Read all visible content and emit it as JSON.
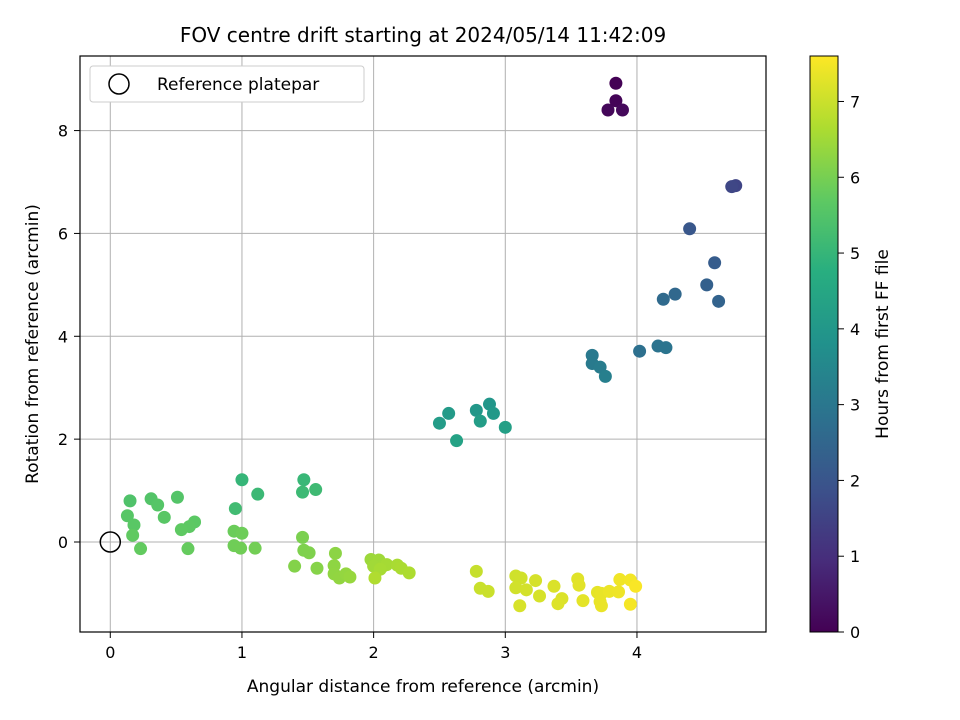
{
  "chart_data": {
    "type": "scatter",
    "title": "FOV centre drift starting at 2024/05/14 11:42:09",
    "xlabel": "Angular distance from reference (arcmin)",
    "ylabel": "Rotation from reference (arcmin)",
    "xlim": [
      -0.23,
      4.98
    ],
    "ylim": [
      -1.75,
      9.45
    ],
    "xticks": [
      0,
      1,
      2,
      3,
      4
    ],
    "yticks": [
      0,
      2,
      4,
      6,
      8
    ],
    "grid": true,
    "legend": {
      "location": "upper-left",
      "entries": [
        "Reference platepar"
      ]
    },
    "colormap": "viridis",
    "colorbar": {
      "label": "Hours from first FF file",
      "range": [
        0,
        7.6
      ],
      "ticks": [
        0,
        1,
        2,
        3,
        4,
        5,
        6,
        7
      ]
    },
    "reference_point": {
      "x": 0,
      "y": 0,
      "label": "Reference platepar"
    },
    "points": [
      {
        "x": 3.84,
        "y": 8.92,
        "h": 0.02
      },
      {
        "x": 3.84,
        "y": 8.58,
        "h": 0.07
      },
      {
        "x": 3.78,
        "y": 8.4,
        "h": 0.12
      },
      {
        "x": 3.89,
        "y": 8.4,
        "h": 0.17
      },
      {
        "x": 4.75,
        "y": 6.93,
        "h": 1.55
      },
      {
        "x": 4.72,
        "y": 6.91,
        "h": 1.62
      },
      {
        "x": 4.4,
        "y": 6.09,
        "h": 2.05
      },
      {
        "x": 4.59,
        "y": 5.43,
        "h": 2.2
      },
      {
        "x": 4.53,
        "y": 5.0,
        "h": 2.32
      },
      {
        "x": 4.62,
        "y": 4.68,
        "h": 2.4
      },
      {
        "x": 4.29,
        "y": 4.82,
        "h": 2.55
      },
      {
        "x": 4.2,
        "y": 4.72,
        "h": 2.62
      },
      {
        "x": 4.02,
        "y": 3.71,
        "h": 2.8
      },
      {
        "x": 4.16,
        "y": 3.81,
        "h": 2.88
      },
      {
        "x": 4.22,
        "y": 3.78,
        "h": 2.92
      },
      {
        "x": 3.66,
        "y": 3.63,
        "h": 3.05
      },
      {
        "x": 3.66,
        "y": 3.47,
        "h": 3.1
      },
      {
        "x": 3.72,
        "y": 3.4,
        "h": 3.15
      },
      {
        "x": 3.76,
        "y": 3.22,
        "h": 3.25
      },
      {
        "x": 2.88,
        "y": 2.68,
        "h": 3.95
      },
      {
        "x": 2.78,
        "y": 2.56,
        "h": 4.0
      },
      {
        "x": 2.91,
        "y": 2.5,
        "h": 4.05
      },
      {
        "x": 2.57,
        "y": 2.5,
        "h": 4.1
      },
      {
        "x": 2.5,
        "y": 2.31,
        "h": 4.15
      },
      {
        "x": 2.81,
        "y": 2.35,
        "h": 4.2
      },
      {
        "x": 3.0,
        "y": 2.23,
        "h": 4.25
      },
      {
        "x": 2.63,
        "y": 1.97,
        "h": 4.35
      },
      {
        "x": 1.0,
        "y": 1.21,
        "h": 5.0
      },
      {
        "x": 1.47,
        "y": 1.21,
        "h": 5.05
      },
      {
        "x": 1.12,
        "y": 0.93,
        "h": 5.1
      },
      {
        "x": 1.46,
        "y": 0.97,
        "h": 5.12
      },
      {
        "x": 1.56,
        "y": 1.02,
        "h": 5.15
      },
      {
        "x": 0.95,
        "y": 0.65,
        "h": 5.2
      },
      {
        "x": 0.15,
        "y": 0.8,
        "h": 5.45
      },
      {
        "x": 0.31,
        "y": 0.84,
        "h": 5.5
      },
      {
        "x": 0.51,
        "y": 0.87,
        "h": 5.52
      },
      {
        "x": 0.36,
        "y": 0.72,
        "h": 5.55
      },
      {
        "x": 0.13,
        "y": 0.51,
        "h": 5.58
      },
      {
        "x": 0.41,
        "y": 0.48,
        "h": 5.6
      },
      {
        "x": 0.18,
        "y": 0.33,
        "h": 5.62
      },
      {
        "x": 0.64,
        "y": 0.39,
        "h": 5.65
      },
      {
        "x": 0.6,
        "y": 0.3,
        "h": 5.68
      },
      {
        "x": 0.54,
        "y": 0.24,
        "h": 5.7
      },
      {
        "x": 0.17,
        "y": 0.13,
        "h": 5.72
      },
      {
        "x": 0.23,
        "y": -0.13,
        "h": 5.75
      },
      {
        "x": 0.59,
        "y": -0.13,
        "h": 5.78
      },
      {
        "x": 0.94,
        "y": 0.21,
        "h": 5.85
      },
      {
        "x": 1.0,
        "y": 0.17,
        "h": 5.88
      },
      {
        "x": 0.94,
        "y": -0.07,
        "h": 5.9
      },
      {
        "x": 0.99,
        "y": -0.12,
        "h": 5.92
      },
      {
        "x": 1.1,
        "y": -0.12,
        "h": 5.95
      },
      {
        "x": 1.46,
        "y": 0.09,
        "h": 6.05
      },
      {
        "x": 1.47,
        "y": -0.16,
        "h": 6.08
      },
      {
        "x": 1.51,
        "y": -0.21,
        "h": 6.1
      },
      {
        "x": 1.4,
        "y": -0.47,
        "h": 6.15
      },
      {
        "x": 1.57,
        "y": -0.51,
        "h": 6.18
      },
      {
        "x": 1.71,
        "y": -0.22,
        "h": 6.25
      },
      {
        "x": 1.7,
        "y": -0.46,
        "h": 6.28
      },
      {
        "x": 1.7,
        "y": -0.62,
        "h": 6.3
      },
      {
        "x": 1.74,
        "y": -0.7,
        "h": 6.32
      },
      {
        "x": 1.79,
        "y": -0.62,
        "h": 6.35
      },
      {
        "x": 1.82,
        "y": -0.68,
        "h": 6.38
      },
      {
        "x": 1.98,
        "y": -0.34,
        "h": 6.45
      },
      {
        "x": 2.04,
        "y": -0.35,
        "h": 6.48
      },
      {
        "x": 2.0,
        "y": -0.47,
        "h": 6.5
      },
      {
        "x": 2.07,
        "y": -0.47,
        "h": 6.52
      },
      {
        "x": 2.1,
        "y": -0.44,
        "h": 6.55
      },
      {
        "x": 2.05,
        "y": -0.53,
        "h": 6.58
      },
      {
        "x": 2.18,
        "y": -0.45,
        "h": 6.6
      },
      {
        "x": 2.21,
        "y": -0.51,
        "h": 6.62
      },
      {
        "x": 2.27,
        "y": -0.6,
        "h": 6.65
      },
      {
        "x": 2.01,
        "y": -0.7,
        "h": 6.68
      },
      {
        "x": 2.78,
        "y": -0.57,
        "h": 6.95
      },
      {
        "x": 2.81,
        "y": -0.9,
        "h": 6.98
      },
      {
        "x": 2.87,
        "y": -0.96,
        "h": 7.0
      },
      {
        "x": 3.08,
        "y": -0.66,
        "h": 7.05
      },
      {
        "x": 3.12,
        "y": -0.7,
        "h": 7.07
      },
      {
        "x": 3.08,
        "y": -0.89,
        "h": 7.08
      },
      {
        "x": 3.16,
        "y": -0.93,
        "h": 7.1
      },
      {
        "x": 3.23,
        "y": -0.75,
        "h": 7.12
      },
      {
        "x": 3.26,
        "y": -1.05,
        "h": 7.14
      },
      {
        "x": 3.11,
        "y": -1.24,
        "h": 7.15
      },
      {
        "x": 3.37,
        "y": -0.86,
        "h": 7.18
      },
      {
        "x": 3.43,
        "y": -1.1,
        "h": 7.2
      },
      {
        "x": 3.4,
        "y": -1.2,
        "h": 7.22
      },
      {
        "x": 3.55,
        "y": -0.72,
        "h": 7.25
      },
      {
        "x": 3.56,
        "y": -0.84,
        "h": 7.28
      },
      {
        "x": 3.59,
        "y": -1.14,
        "h": 7.3
      },
      {
        "x": 3.7,
        "y": -0.98,
        "h": 7.32
      },
      {
        "x": 3.73,
        "y": -1.0,
        "h": 7.35
      },
      {
        "x": 3.72,
        "y": -1.16,
        "h": 7.36
      },
      {
        "x": 3.73,
        "y": -1.24,
        "h": 7.37
      },
      {
        "x": 3.79,
        "y": -0.96,
        "h": 7.4
      },
      {
        "x": 3.86,
        "y": -0.97,
        "h": 7.42
      },
      {
        "x": 3.87,
        "y": -0.73,
        "h": 7.45
      },
      {
        "x": 3.95,
        "y": -0.74,
        "h": 7.48
      },
      {
        "x": 3.95,
        "y": -1.21,
        "h": 7.5
      },
      {
        "x": 3.99,
        "y": -0.86,
        "h": 7.55
      }
    ]
  }
}
